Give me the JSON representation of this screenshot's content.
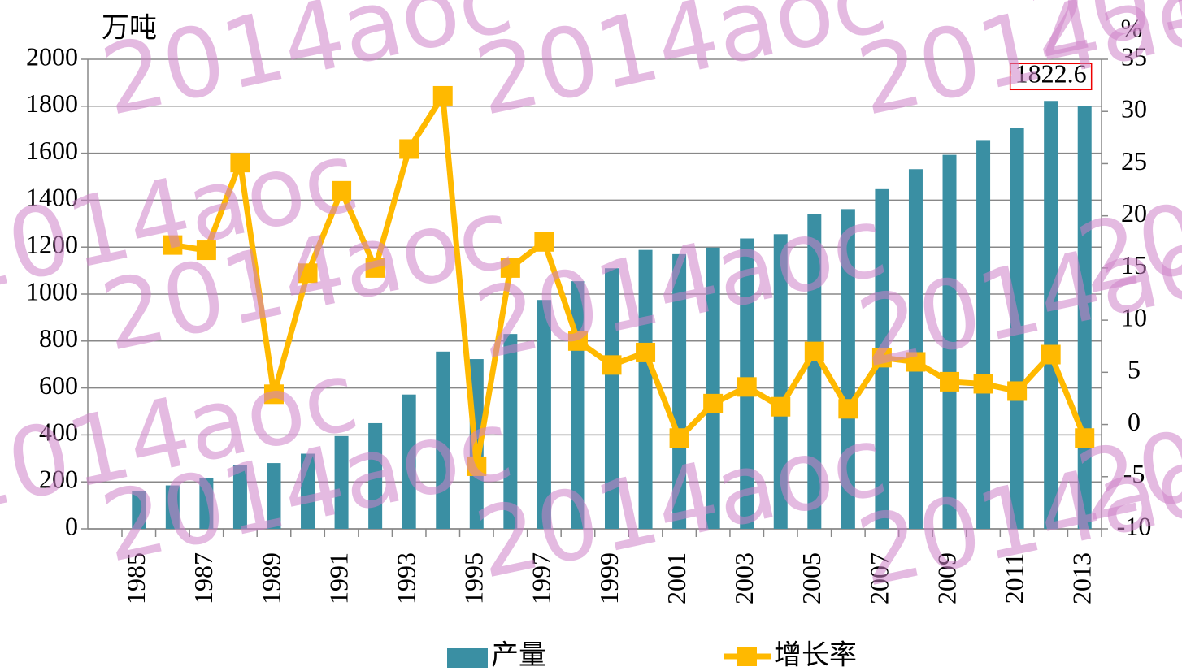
{
  "watermark": "2014aoc",
  "chart_data": {
    "type": "bar_line",
    "y_label": "万吨",
    "y2_label": "%",
    "categories": [
      "1985",
      null,
      "1987",
      null,
      "1989",
      null,
      "1991",
      null,
      "1993",
      null,
      "1995",
      null,
      "1997",
      null,
      "1999",
      null,
      "2001",
      null,
      "2003",
      null,
      "2005",
      null,
      "2007",
      null,
      "2009",
      null,
      "2011",
      null,
      "2013"
    ],
    "series": [
      {
        "name": "产量",
        "type": "bar",
        "color": "#3a8fa3",
        "values": [
          160,
          185,
          218,
          272,
          280,
          320,
          395,
          450,
          572,
          755,
          723,
          830,
          975,
          1055,
          1110,
          1188,
          1170,
          1198,
          1237,
          1255,
          1342,
          1362,
          1447,
          1532,
          1593,
          1656,
          1708,
          1822.6,
          1800
        ],
        "value_labels": [
          null,
          null,
          null,
          null,
          null,
          null,
          null,
          null,
          null,
          null,
          null,
          null,
          null,
          null,
          null,
          null,
          null,
          null,
          null,
          null,
          null,
          null,
          null,
          null,
          null,
          null,
          null,
          "1822.6",
          null
        ]
      },
      {
        "name": "增长率",
        "type": "line",
        "axis": "y2",
        "color": "#ffb900",
        "values": [
          null,
          17.2,
          16.7,
          25.1,
          2.9,
          14.5,
          22.4,
          15.0,
          26.4,
          31.5,
          -4.0,
          15.0,
          17.5,
          8.0,
          5.7,
          6.9,
          -1.3,
          2.0,
          3.6,
          1.7,
          7.0,
          1.5,
          6.4,
          6.0,
          4.1,
          3.9,
          3.2,
          6.7,
          -1.3
        ]
      }
    ],
    "ylim": [
      0,
      2000
    ],
    "yticks": [
      0,
      200,
      400,
      600,
      800,
      1000,
      1200,
      1400,
      1600,
      1800,
      2000
    ],
    "y2lim": [
      -10,
      35
    ],
    "y2ticks": [
      -10,
      -5,
      0,
      5,
      10,
      15,
      20,
      25,
      30,
      35
    ],
    "grid": true,
    "legend": "bottom"
  }
}
